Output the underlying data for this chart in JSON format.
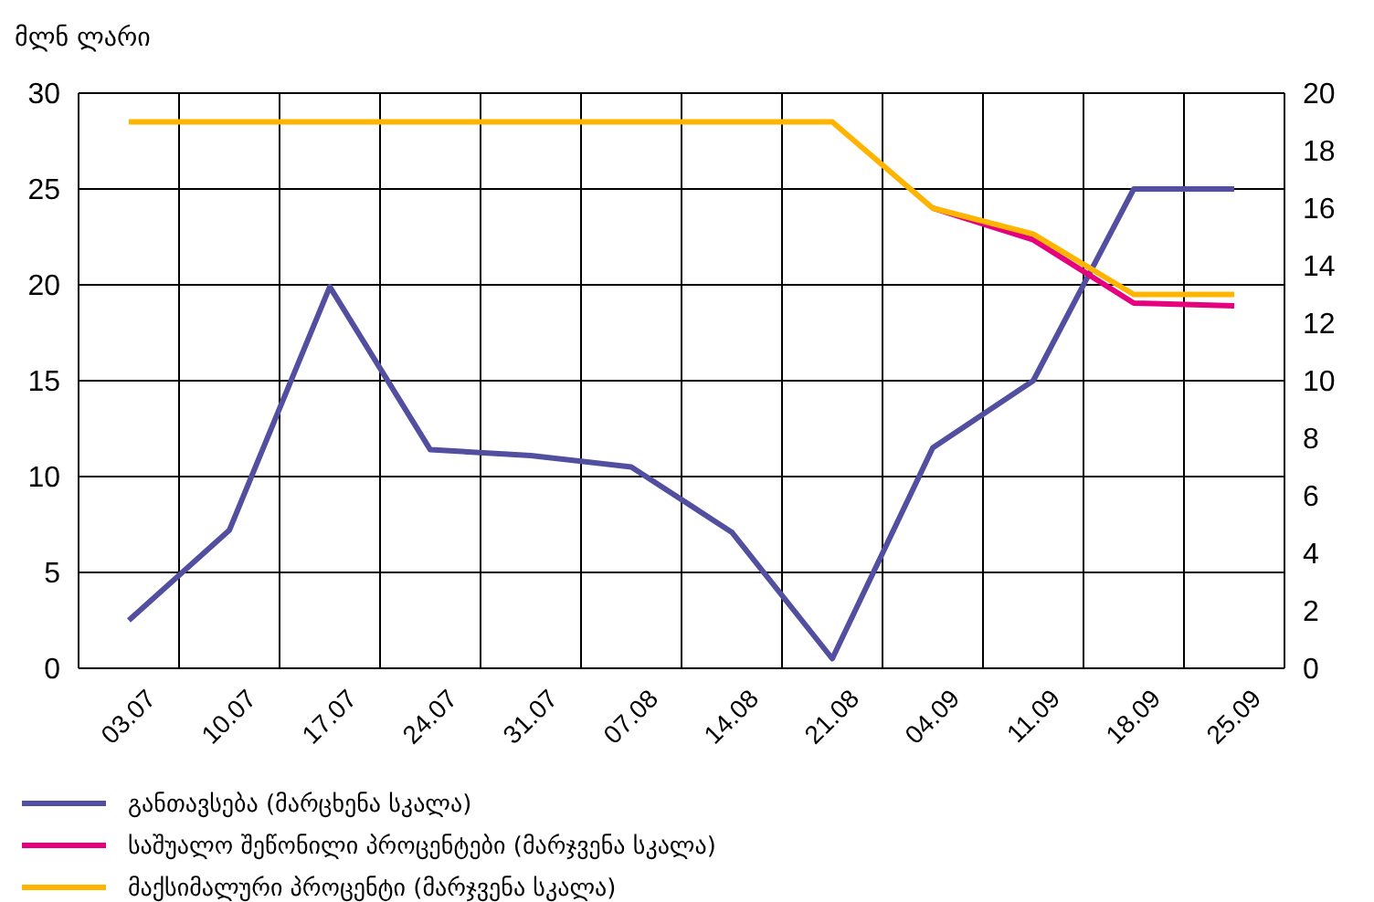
{
  "chart_data": {
    "type": "line",
    "ylabel": "მლნ ლარი",
    "categories": [
      "03.07",
      "10.07",
      "17.07",
      "24.07",
      "31.07",
      "07.08",
      "14.08",
      "21.08",
      "04.09",
      "11.09",
      "18.09",
      "25.09"
    ],
    "series": [
      {
        "name": "განთავსება (მარცხენა სკალა)",
        "color": "#524ea0",
        "values": [
          2.5,
          7.2,
          19.9,
          11.4,
          11.1,
          10.5,
          7.1,
          0.5,
          11.5,
          15.0,
          25.0,
          25.0
        ]
      },
      {
        "name": "საშუალო შეწონილი პროცენტები (მარჯვენა სკალა)",
        "color": "#e6007e",
        "axis": "y2",
        "values": [
          null,
          null,
          null,
          null,
          null,
          null,
          null,
          null,
          16,
          14.9,
          12.7,
          12.6
        ]
      },
      {
        "name": "მაქსიმალური პროცენტი (მარჯვენა სკალა)",
        "color": "#ffb400",
        "axis": "y2",
        "values": [
          19,
          19,
          19,
          19,
          19,
          19,
          19,
          19,
          16,
          15.1,
          13,
          13
        ]
      }
    ],
    "ylim": [
      0,
      30
    ],
    "yticks": [
      0,
      5,
      10,
      15,
      20,
      25,
      30
    ],
    "y2lim": [
      0,
      20
    ],
    "y2ticks": [
      0,
      2,
      4,
      6,
      8,
      10,
      12,
      14,
      16,
      18,
      20
    ],
    "grid": true,
    "legend": "bottom"
  }
}
